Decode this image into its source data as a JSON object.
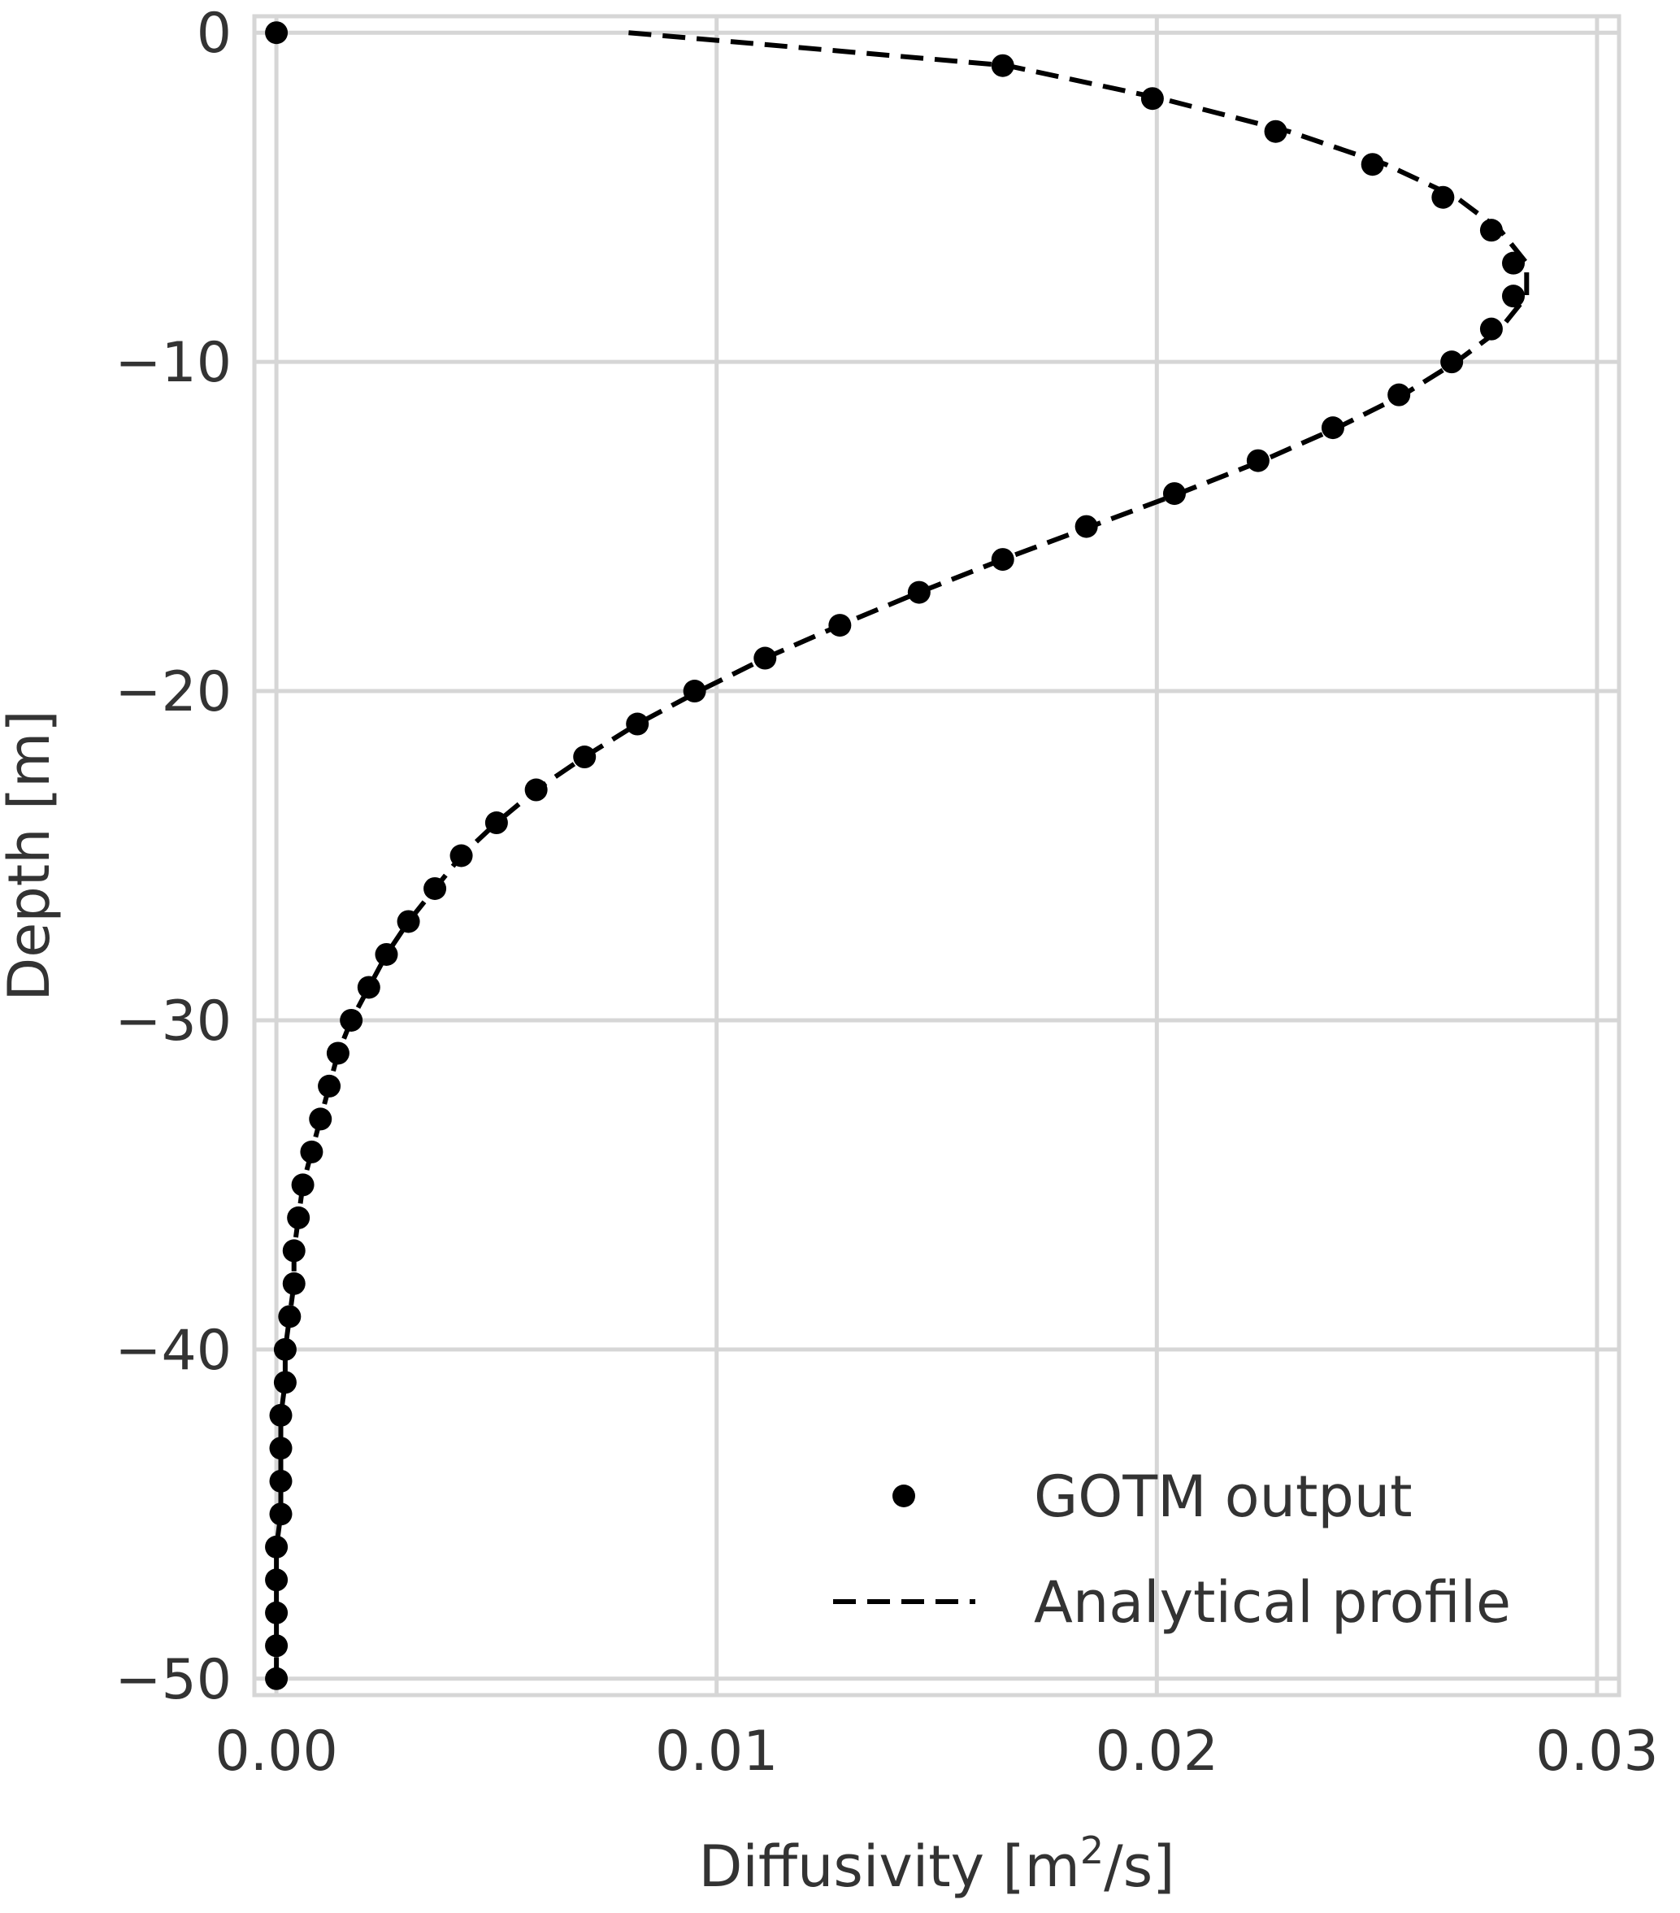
{
  "chart_data": {
    "type": "scatter",
    "xlabel": "Diffusivity [m",
    "xlabel_sup": "2",
    "xlabel_tail": "/s]",
    "ylabel": "Depth [m]",
    "xlim": [
      -0.0005,
      0.0305
    ],
    "ylim": [
      -50.5,
      0.5
    ],
    "x_ticks": [
      0.0,
      0.01,
      0.02,
      0.03
    ],
    "x_tick_labels": [
      "0.00",
      "0.01",
      "0.02",
      "0.03"
    ],
    "y_ticks": [
      0,
      -10,
      -20,
      -30,
      -40,
      -50
    ],
    "y_tick_labels": [
      "0",
      "−10",
      "−20",
      "−30",
      "−40",
      "−50"
    ],
    "grid": true,
    "legend_placement": "bottom-right",
    "colors": {
      "data": "#000000",
      "grid": "#d6d6d6",
      "text": "#333333"
    },
    "series": [
      {
        "name": "GOTM output",
        "kind": "scatter",
        "x": [
          0.0,
          0.0165,
          0.0199,
          0.0227,
          0.0249,
          0.0265,
          0.0276,
          0.0281,
          0.0281,
          0.0276,
          0.0267,
          0.0255,
          0.024,
          0.0223,
          0.0204,
          0.0184,
          0.0165,
          0.0146,
          0.0128,
          0.0111,
          0.0095,
          0.0082,
          0.007,
          0.0059,
          0.005,
          0.0042,
          0.0036,
          0.003,
          0.0025,
          0.0021,
          0.0017,
          0.0014,
          0.0012,
          0.001,
          0.0008,
          0.0006,
          0.0005,
          0.0004,
          0.0004,
          0.0003,
          0.0002,
          0.0002,
          0.0001,
          0.0001,
          0.0001,
          0.0001,
          0.0,
          0.0,
          0.0,
          0.0,
          0.0
        ],
        "y": [
          0,
          -1,
          -2,
          -3,
          -4,
          -5,
          -6,
          -7,
          -8,
          -9,
          -10,
          -11,
          -12,
          -13,
          -14,
          -15,
          -16,
          -17,
          -18,
          -19,
          -20,
          -21,
          -22,
          -23,
          -24,
          -25,
          -26,
          -27,
          -28,
          -29,
          -30,
          -31,
          -32,
          -33,
          -34,
          -35,
          -36,
          -37,
          -38,
          -39,
          -40,
          -41,
          -42,
          -43,
          -44,
          -45,
          -46,
          -47,
          -48,
          -49,
          -50
        ]
      },
      {
        "name": "Analytical profile",
        "kind": "line",
        "style": "dashed",
        "x": [
          0.008,
          0.0166,
          0.0201,
          0.023,
          0.0252,
          0.0268,
          0.0278,
          0.0284,
          0.0284,
          0.0278,
          0.0268,
          0.0256,
          0.0241,
          0.0224,
          0.0205,
          0.0185,
          0.0165,
          0.0146,
          0.0128,
          0.0111,
          0.0096,
          0.0082,
          0.007,
          0.0059,
          0.005,
          0.0042,
          0.0036,
          0.003,
          0.0025,
          0.0021,
          0.0017,
          0.0014,
          0.0012,
          0.001,
          0.0008,
          0.0006,
          0.0005,
          0.0004,
          0.0004,
          0.0003,
          0.0002,
          0.0002,
          0.0001,
          0.0001,
          0.0001,
          0.0001,
          0.0,
          0.0,
          0.0,
          0.0,
          0.0
        ],
        "y": [
          0,
          -1,
          -2,
          -3,
          -4,
          -5,
          -6,
          -7,
          -8,
          -9,
          -10,
          -11,
          -12,
          -13,
          -14,
          -15,
          -16,
          -17,
          -18,
          -19,
          -20,
          -21,
          -22,
          -23,
          -24,
          -25,
          -26,
          -27,
          -28,
          -29,
          -30,
          -31,
          -32,
          -33,
          -34,
          -35,
          -36,
          -37,
          -38,
          -39,
          -40,
          -41,
          -42,
          -43,
          -44,
          -45,
          -46,
          -47,
          -48,
          -49,
          -50
        ]
      }
    ]
  }
}
